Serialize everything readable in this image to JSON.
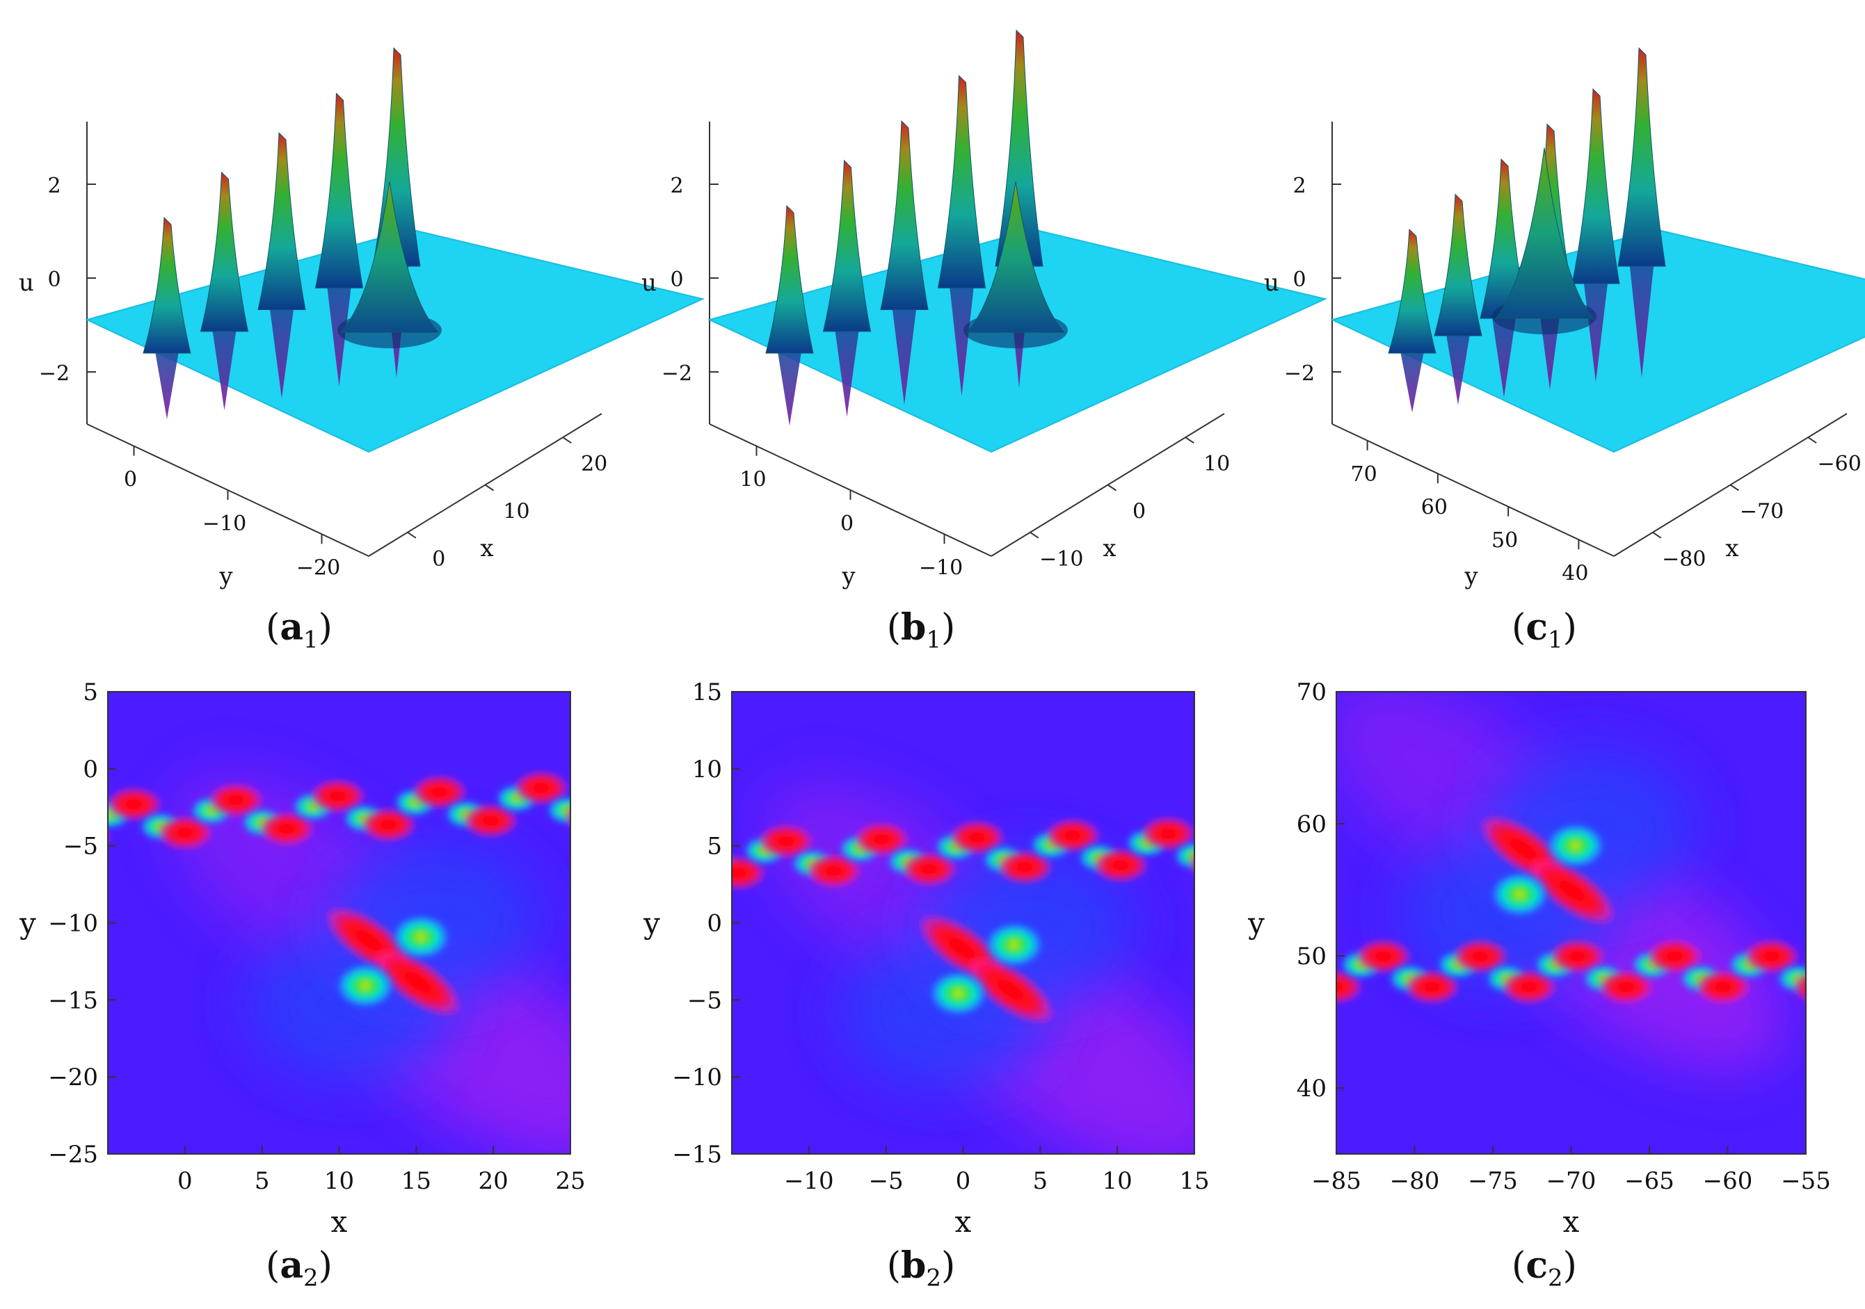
{
  "chart_data": [
    {
      "id": "a1",
      "type": "surface3d",
      "label": {
        "letter": "a",
        "sub": "1"
      },
      "zlabel": "u",
      "xlabel": "x",
      "ylabel": "y",
      "z_ticks": [
        "2",
        "0",
        "−2"
      ],
      "y_ticks": [
        "0",
        "−10",
        "−20"
      ],
      "x_ticks": [
        "0",
        "10",
        "20"
      ],
      "peaks": [
        2.2,
        2.6,
        2.9,
        3.2,
        3.6
      ],
      "lump_peak": 2.2
    },
    {
      "id": "b1",
      "type": "surface3d",
      "label": {
        "letter": "b",
        "sub": "1"
      },
      "zlabel": "u",
      "xlabel": "x",
      "ylabel": "y",
      "z_ticks": [
        "2",
        "0",
        "−2"
      ],
      "y_ticks": [
        "10",
        "0",
        "−10"
      ],
      "x_ticks": [
        "−10",
        "0",
        "10"
      ],
      "peaks": [
        2.4,
        2.8,
        3.1,
        3.5,
        3.9
      ],
      "lump_peak": 2.2
    },
    {
      "id": "c1",
      "type": "surface3d",
      "label": {
        "letter": "c",
        "sub": "1"
      },
      "zlabel": "u",
      "xlabel": "x",
      "ylabel": "y",
      "z_ticks": [
        "2",
        "0",
        "−2"
      ],
      "y_ticks": [
        "70",
        "60",
        "50",
        "40"
      ],
      "x_ticks": [
        "−80",
        "−70",
        "−60"
      ],
      "peaks": [
        2.0,
        2.3,
        2.6,
        2.9,
        3.2,
        3.6
      ],
      "lump_peak": 2.5
    },
    {
      "id": "a2",
      "type": "heatmap",
      "label": {
        "letter": "a",
        "sub": "2"
      },
      "xlabel": "x",
      "ylabel": "y",
      "xlim": [
        -5,
        25
      ],
      "ylim": [
        -25,
        5
      ],
      "x_ticks": [
        "0",
        "5",
        "10",
        "15",
        "20",
        "25"
      ],
      "y_ticks": [
        "5",
        "0",
        "−5",
        "−10",
        "−15",
        "−20",
        "−25"
      ],
      "periodic_wave": {
        "y_center": -3.3,
        "slope": 0.04,
        "period": 6.6,
        "x_start": -3.3
      },
      "lump": {
        "x": 13.5,
        "y": -12.5
      }
    },
    {
      "id": "b2",
      "type": "heatmap",
      "label": {
        "letter": "b",
        "sub": "2"
      },
      "xlabel": "x",
      "ylabel": "y",
      "xlim": [
        -15,
        15
      ],
      "ylim": [
        -15,
        15
      ],
      "x_ticks": [
        "−10",
        "−5",
        "0",
        "5",
        "10",
        "15"
      ],
      "y_ticks": [
        "15",
        "10",
        "5",
        "0",
        "−5",
        "−10",
        "−15"
      ],
      "periodic_wave": {
        "y_center": 4.3,
        "slope": 0.02,
        "period": 6.2,
        "x_start": -11.5
      },
      "lump": {
        "x": 1.5,
        "y": -3.0
      }
    },
    {
      "id": "c2",
      "type": "heatmap",
      "label": {
        "letter": "c",
        "sub": "2"
      },
      "xlabel": "x",
      "ylabel": "y",
      "xlim": [
        -85,
        -55
      ],
      "ylim": [
        35,
        70
      ],
      "x_ticks": [
        "−85",
        "−80",
        "−75",
        "−70",
        "−65",
        "−60",
        "−55"
      ],
      "y_ticks": [
        "70",
        "60",
        "50",
        "40"
      ],
      "periodic_wave": {
        "y_center": 48.8,
        "slope": 0.0,
        "period": 6.2,
        "x_start": -82
      },
      "lump": {
        "x": -71.5,
        "y": 56.5
      }
    }
  ]
}
